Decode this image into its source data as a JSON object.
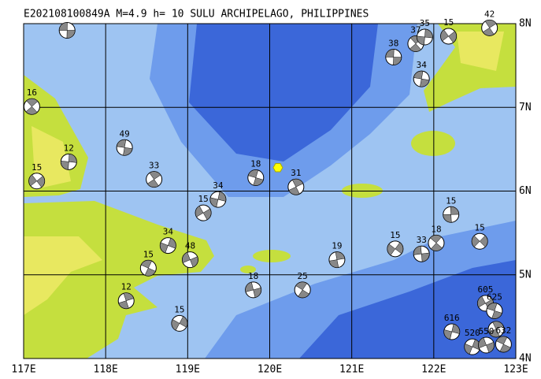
{
  "chart_data": {
    "type": "focal-map",
    "title": "E202108100849A M=4.9 h= 10 SULU ARCHIPELAGO, PHILIPPINES",
    "xlim": [
      117,
      123
    ],
    "ylim": [
      4,
      8
    ],
    "xticks": [
      {
        "value": 117,
        "label": "117E"
      },
      {
        "value": 118,
        "label": "118E"
      },
      {
        "value": 119,
        "label": "119E"
      },
      {
        "value": 120,
        "label": "120E"
      },
      {
        "value": 121,
        "label": "121E"
      },
      {
        "value": 122,
        "label": "122E"
      },
      {
        "value": 123,
        "label": "123E"
      }
    ],
    "yticks": [
      {
        "value": 4,
        "label": "4N"
      },
      {
        "value": 5,
        "label": "5N"
      },
      {
        "value": 6,
        "label": "6N"
      },
      {
        "value": 7,
        "label": "7N"
      },
      {
        "value": 8,
        "label": "8N"
      }
    ],
    "grid": true,
    "epicenter": {
      "lon": 120.1,
      "lat": 6.28,
      "color": "#ffff00"
    },
    "events": {
      "lon": [
        117.53,
        117.1,
        117.55,
        117.16,
        118.23,
        118.59,
        119.37,
        119.19,
        119.83,
        120.32,
        118.76,
        119.03,
        118.52,
        118.25,
        118.9,
        119.8,
        120.4,
        120.82,
        121.53,
        121.85,
        122.03,
        122.21,
        122.56,
        121.51,
        121.78,
        121.89,
        122.18,
        121.85,
        122.68,
        122.22,
        122.63,
        122.74,
        122.76,
        122.47,
        122.64,
        122.85
      ],
      "lat": [
        7.92,
        7.01,
        6.35,
        6.12,
        6.52,
        6.14,
        5.9,
        5.74,
        6.16,
        6.05,
        5.35,
        5.18,
        5.08,
        4.69,
        4.42,
        4.82,
        4.82,
        5.18,
        5.31,
        5.25,
        5.38,
        5.72,
        5.4,
        7.6,
        7.76,
        7.84,
        7.85,
        7.34,
        7.95,
        4.32,
        4.66,
        4.57,
        4.35,
        4.14,
        4.16,
        4.17
      ],
      "depth": [
        null,
        16,
        12,
        15,
        49,
        33,
        34,
        15,
        18,
        31,
        34,
        48,
        15,
        12,
        15,
        18,
        25,
        19,
        15,
        33,
        18,
        15,
        15,
        38,
        37,
        35,
        15,
        34,
        42,
        616,
        605,
        625,
        null,
        520,
        550,
        632
      ]
    }
  }
}
